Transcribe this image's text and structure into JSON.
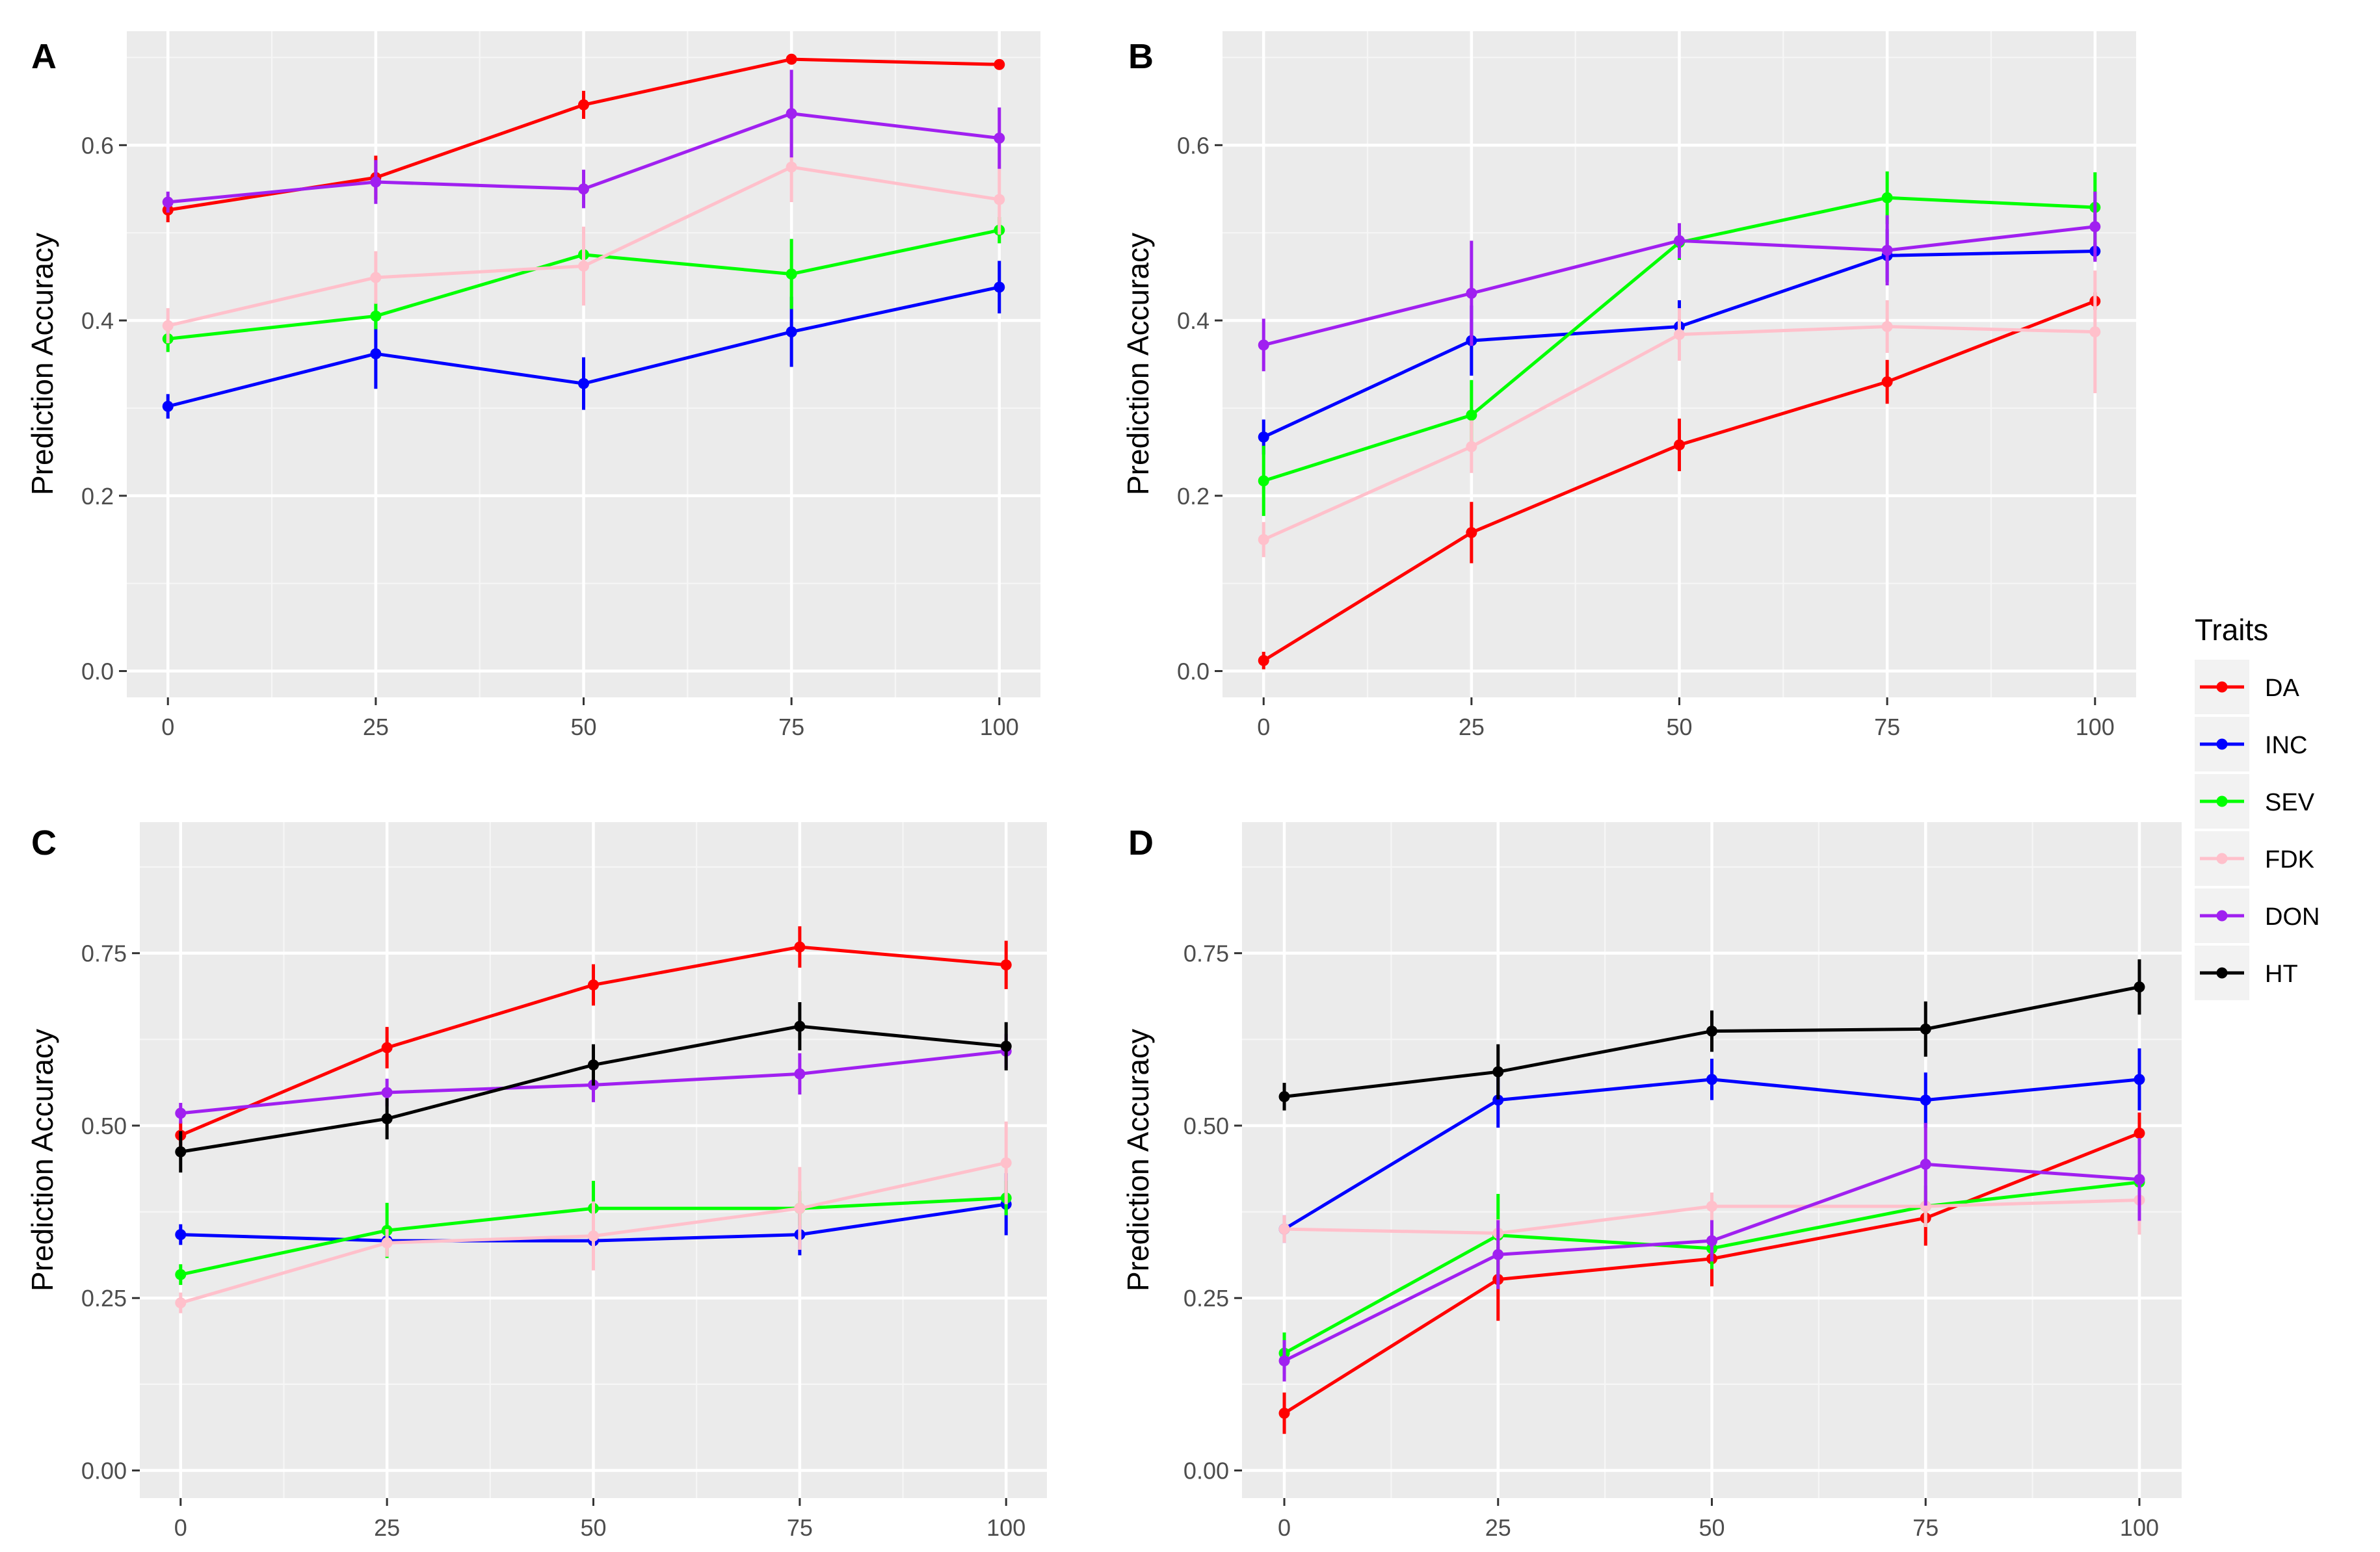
{
  "colors": {
    "DA": "#FF0000",
    "INC": "#0000FF",
    "SEV": "#00FF00",
    "FDK": "#FFC0CB",
    "DON": "#A020F0",
    "HT": "#000000"
  },
  "legend": {
    "title": "Traits",
    "entries": [
      "DA",
      "INC",
      "SEV",
      "FDK",
      "DON",
      "HT"
    ]
  },
  "chart_data": [
    {
      "type": "line",
      "panel": "A",
      "ylabel": "Prediction Accuracy",
      "xlabel": "",
      "x": [
        0,
        25,
        50,
        75,
        100
      ],
      "xticks": [
        "0",
        "25",
        "50",
        "75",
        "100"
      ],
      "ylim": [
        -0.03,
        0.73
      ],
      "yticks": [
        0.0,
        0.2,
        0.4,
        0.6
      ],
      "ytick_labels": [
        "0.0",
        "0.2",
        "0.4",
        "0.6"
      ],
      "series": [
        {
          "name": "DA",
          "values": [
            0.526,
            0.563,
            0.646,
            0.698,
            0.692
          ],
          "errors": [
            0.014,
            0.025,
            0.016,
            0.005,
            0.005
          ]
        },
        {
          "name": "INC",
          "values": [
            0.302,
            0.362,
            0.328,
            0.387,
            0.438
          ],
          "errors": [
            0.014,
            0.04,
            0.03,
            0.04,
            0.03
          ]
        },
        {
          "name": "SEV",
          "values": [
            0.379,
            0.405,
            0.475,
            0.453,
            0.503
          ],
          "errors": [
            0.015,
            0.015,
            0.03,
            0.04,
            0.015
          ]
        },
        {
          "name": "FDK",
          "values": [
            0.394,
            0.449,
            0.462,
            0.575,
            0.538
          ],
          "errors": [
            0.02,
            0.03,
            0.045,
            0.04,
            0.04
          ]
        },
        {
          "name": "DON",
          "values": [
            0.535,
            0.558,
            0.55,
            0.636,
            0.608
          ],
          "errors": [
            0.012,
            0.025,
            0.022,
            0.05,
            0.035
          ]
        }
      ]
    },
    {
      "type": "line",
      "panel": "B",
      "ylabel": "Prediction Accuracy",
      "xlabel": "",
      "x": [
        0,
        25,
        50,
        75,
        100
      ],
      "xticks": [
        "0",
        "25",
        "50",
        "75",
        "100"
      ],
      "ylim": [
        -0.03,
        0.73
      ],
      "yticks": [
        0.0,
        0.2,
        0.4,
        0.6
      ],
      "ytick_labels": [
        "0.0",
        "0.2",
        "0.4",
        "0.6"
      ],
      "series": [
        {
          "name": "DA",
          "values": [
            0.012,
            0.158,
            0.258,
            0.33,
            0.422
          ],
          "errors": [
            0.01,
            0.035,
            0.03,
            0.025,
            0.01
          ]
        },
        {
          "name": "INC",
          "values": [
            0.267,
            0.377,
            0.393,
            0.474,
            0.479
          ],
          "errors": [
            0.02,
            0.04,
            0.03,
            0.03,
            0.01
          ]
        },
        {
          "name": "SEV",
          "values": [
            0.217,
            0.292,
            0.489,
            0.54,
            0.529
          ],
          "errors": [
            0.04,
            0.04,
            0.02,
            0.03,
            0.04
          ]
        },
        {
          "name": "FDK",
          "values": [
            0.15,
            0.256,
            0.384,
            0.393,
            0.387
          ],
          "errors": [
            0.02,
            0.03,
            0.03,
            0.03,
            0.07
          ]
        },
        {
          "name": "DON",
          "values": [
            0.372,
            0.431,
            0.491,
            0.48,
            0.507
          ],
          "errors": [
            0.03,
            0.06,
            0.02,
            0.04,
            0.04
          ]
        }
      ]
    },
    {
      "type": "line",
      "panel": "C",
      "ylabel": "Prediction Accuracy",
      "xlabel": "",
      "x": [
        0,
        25,
        50,
        75,
        100
      ],
      "xticks": [
        "0",
        "25",
        "50",
        "75",
        "100"
      ],
      "ylim": [
        -0.04,
        0.94
      ],
      "yticks": [
        0.0,
        0.25,
        0.5,
        0.75
      ],
      "ytick_labels": [
        "0.00",
        "0.25",
        "0.50",
        "0.75"
      ],
      "series": [
        {
          "name": "DA",
          "values": [
            0.486,
            0.613,
            0.704,
            0.759,
            0.733
          ],
          "errors": [
            0.02,
            0.03,
            0.03,
            0.03,
            0.035
          ]
        },
        {
          "name": "INC",
          "values": [
            0.342,
            0.333,
            0.333,
            0.342,
            0.386
          ],
          "errors": [
            0.015,
            0.01,
            0.01,
            0.03,
            0.045
          ]
        },
        {
          "name": "SEV",
          "values": [
            0.284,
            0.348,
            0.38,
            0.38,
            0.395
          ],
          "errors": [
            0.015,
            0.04,
            0.04,
            0.025,
            0.025
          ]
        },
        {
          "name": "FDK",
          "values": [
            0.243,
            0.33,
            0.34,
            0.38,
            0.446
          ],
          "errors": [
            0.015,
            0.02,
            0.05,
            0.06,
            0.06
          ]
        },
        {
          "name": "DON",
          "values": [
            0.518,
            0.548,
            0.559,
            0.575,
            0.608
          ],
          "errors": [
            0.015,
            0.02,
            0.025,
            0.03,
            0.025
          ]
        },
        {
          "name": "HT",
          "values": [
            0.462,
            0.51,
            0.588,
            0.644,
            0.615
          ],
          "errors": [
            0.03,
            0.03,
            0.03,
            0.035,
            0.035
          ]
        }
      ]
    },
    {
      "type": "line",
      "panel": "D",
      "ylabel": "Prediction Accuracy",
      "xlabel": "",
      "x": [
        0,
        25,
        50,
        75,
        100
      ],
      "xticks": [
        "0",
        "25",
        "50",
        "75",
        "100"
      ],
      "ylim": [
        -0.04,
        0.94
      ],
      "yticks": [
        0.0,
        0.25,
        0.5,
        0.75
      ],
      "ytick_labels": [
        "0.00",
        "0.25",
        "0.50",
        "0.75"
      ],
      "series": [
        {
          "name": "DA",
          "values": [
            0.083,
            0.277,
            0.307,
            0.366,
            0.489
          ],
          "errors": [
            0.03,
            0.06,
            0.04,
            0.04,
            0.03
          ]
        },
        {
          "name": "INC",
          "values": [
            0.35,
            0.537,
            0.567,
            0.537,
            0.567
          ],
          "errors": [
            0.02,
            0.04,
            0.03,
            0.04,
            0.045
          ]
        },
        {
          "name": "SEV",
          "values": [
            0.17,
            0.341,
            0.322,
            0.383,
            0.418
          ],
          "errors": [
            0.03,
            0.06,
            0.03,
            0.03,
            0.03
          ]
        },
        {
          "name": "FDK",
          "values": [
            0.35,
            0.344,
            0.383,
            0.383,
            0.392
          ],
          "errors": [
            0.02,
            0.02,
            0.02,
            0.03,
            0.05
          ]
        },
        {
          "name": "DON",
          "values": [
            0.159,
            0.313,
            0.333,
            0.444,
            0.422
          ],
          "errors": [
            0.03,
            0.05,
            0.03,
            0.06,
            0.06
          ]
        },
        {
          "name": "HT",
          "values": [
            0.542,
            0.578,
            0.637,
            0.64,
            0.701
          ],
          "errors": [
            0.02,
            0.04,
            0.03,
            0.04,
            0.04
          ]
        }
      ]
    }
  ]
}
